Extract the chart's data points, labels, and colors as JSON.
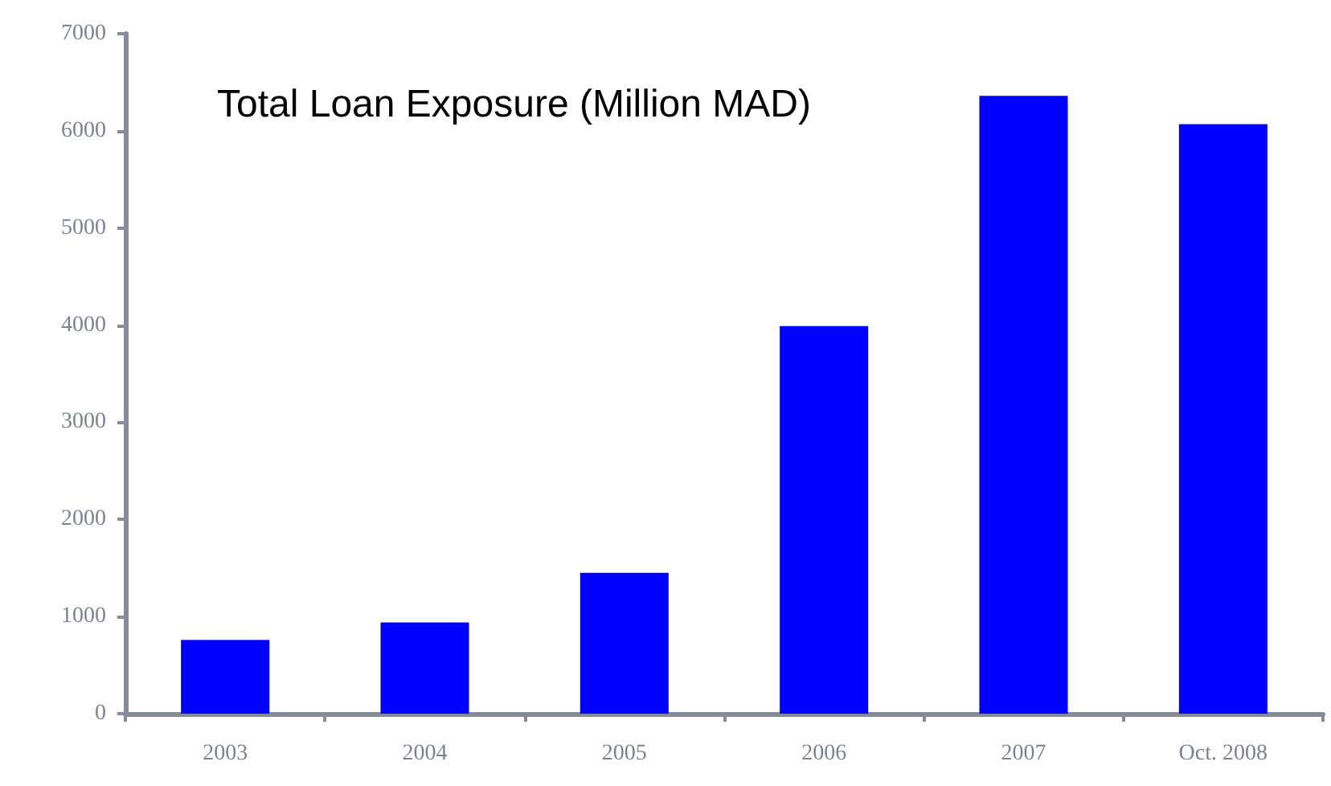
{
  "chart_data": {
    "type": "bar",
    "title": "Total Loan Exposure (Million MAD)",
    "categories": [
      "2003",
      "2004",
      "2005",
      "2006",
      "2007",
      "Oct. 2008"
    ],
    "values": [
      760,
      940,
      1450,
      3990,
      6360,
      6070
    ],
    "color": "#0000ff",
    "ylim": [
      0,
      7000
    ],
    "yticks": [
      0,
      1000,
      2000,
      3000,
      4000,
      5000,
      6000,
      7000
    ],
    "grid": false
  }
}
